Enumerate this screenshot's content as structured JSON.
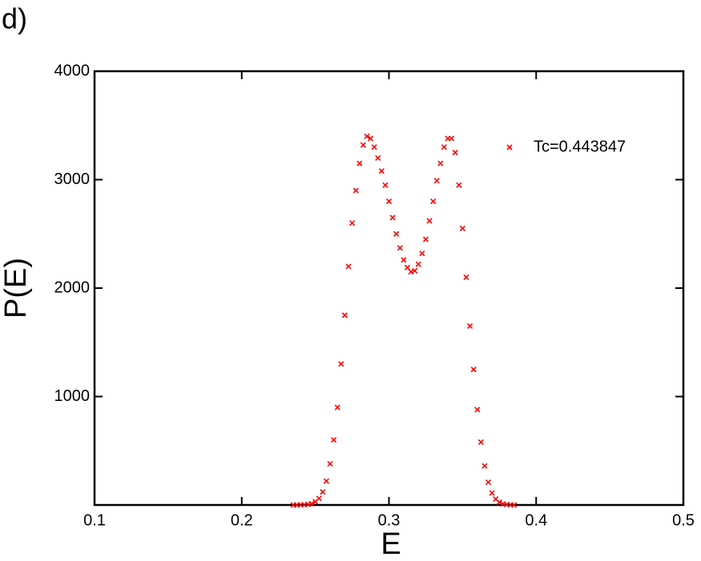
{
  "chart_data": {
    "type": "scatter",
    "panel_label": "d)",
    "xlabel": "E",
    "ylabel": "P(E)",
    "xlim": [
      0.1,
      0.5
    ],
    "xticks": [
      0.1,
      0.2,
      0.3,
      0.4,
      0.5
    ],
    "ylim": [
      0,
      4000
    ],
    "yticks": [
      1000,
      2000,
      3000,
      4000
    ],
    "legend": "top-right",
    "series": [
      {
        "name": "Tc=0.443847",
        "color": "#ff0000",
        "x": [
          0.235,
          0.2375,
          0.24,
          0.2425,
          0.245,
          0.2475,
          0.25,
          0.2525,
          0.255,
          0.2575,
          0.26,
          0.2625,
          0.265,
          0.2675,
          0.27,
          0.2725,
          0.275,
          0.2775,
          0.28,
          0.2825,
          0.285,
          0.2875,
          0.29,
          0.2925,
          0.295,
          0.2975,
          0.3,
          0.3025,
          0.305,
          0.3075,
          0.31,
          0.3125,
          0.315,
          0.3175,
          0.32,
          0.3225,
          0.325,
          0.3275,
          0.33,
          0.3325,
          0.335,
          0.3375,
          0.34,
          0.3425,
          0.345,
          0.3475,
          0.35,
          0.3525,
          0.355,
          0.3575,
          0.36,
          0.3625,
          0.365,
          0.3675,
          0.37,
          0.3725,
          0.375,
          0.3775,
          0.38,
          0.3825,
          0.385
        ],
        "values": [
          0,
          0,
          1,
          2,
          5,
          12,
          30,
          60,
          120,
          220,
          380,
          600,
          900,
          1300,
          1750,
          2200,
          2600,
          2900,
          3150,
          3320,
          3400,
          3380,
          3300,
          3200,
          3080,
          2950,
          2800,
          2650,
          2500,
          2370,
          2260,
          2190,
          2150,
          2160,
          2220,
          2320,
          2450,
          2620,
          2800,
          2990,
          3150,
          3300,
          3380,
          3380,
          3250,
          2950,
          2550,
          2100,
          1650,
          1250,
          880,
          580,
          360,
          210,
          110,
          55,
          25,
          10,
          4,
          1,
          0
        ]
      }
    ]
  }
}
